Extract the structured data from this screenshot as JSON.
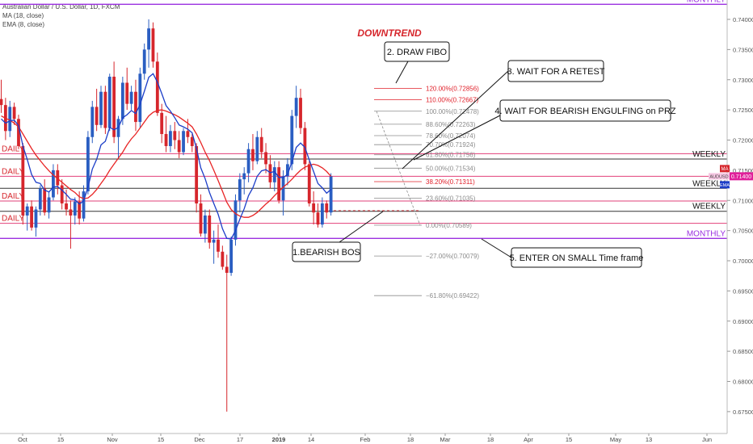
{
  "legend": {
    "title": "Australian Dollar / U.S. Dollar, 1D, FXCM",
    "ma": "MA (18, close)",
    "ema": "EMA (8, close)"
  },
  "colors": {
    "bull": "#2a5ec2",
    "bear": "#d6262c",
    "ma_line": "#e82424",
    "ema_line": "#1c3ec8",
    "level_red": "#e2407a",
    "level_dark": "#333333",
    "monthly": "#9b30e0",
    "fib_red": "#e0202a",
    "fib_grey": "#8c8c8c",
    "badge_ma": "#d6262c",
    "badge_price": "#e0209a",
    "badge_ema": "#1c3ec8"
  },
  "chart_data": {
    "type": "candlestick",
    "symbol": "AUDUSD",
    "timeframe": "1D",
    "y_range": [
      0.674,
      0.7425
    ],
    "y_ticks": [
      "0.74000",
      "0.73500",
      "0.73000",
      "0.72500",
      "0.72000",
      "0.71500",
      "0.71000",
      "0.70500",
      "0.70000",
      "0.69500",
      "0.69000",
      "0.68500",
      "0.68000",
      "0.67500"
    ],
    "x_labels": [
      "Oct",
      "15",
      "Nov",
      "15",
      "Dec",
      "17",
      "2019",
      "14",
      "Feb",
      "18",
      "Mar",
      "18",
      "Apr",
      "15",
      "May",
      "13",
      "Jun"
    ],
    "indicators": [
      "MA (18, close)",
      "EMA (8, close)"
    ],
    "badges": {
      "ma": "MA",
      "price": "0.71400",
      "ema": "EMA",
      "symbol": "AUDUSD"
    },
    "candles": [
      [
        0.7268,
        0.73,
        0.7245,
        0.7258
      ],
      [
        0.7258,
        0.727,
        0.72,
        0.7215
      ],
      [
        0.7215,
        0.7265,
        0.7205,
        0.7255
      ],
      [
        0.7255,
        0.7262,
        0.7225,
        0.7235
      ],
      [
        0.7235,
        0.7242,
        0.7185,
        0.719
      ],
      [
        0.719,
        0.7195,
        0.706,
        0.7075
      ],
      [
        0.7075,
        0.7095,
        0.705,
        0.709
      ],
      [
        0.709,
        0.71,
        0.705,
        0.7055
      ],
      [
        0.7055,
        0.709,
        0.704,
        0.7085
      ],
      [
        0.7085,
        0.7125,
        0.7075,
        0.712
      ],
      [
        0.712,
        0.7135,
        0.7075,
        0.708
      ],
      [
        0.708,
        0.7115,
        0.707,
        0.7105
      ],
      [
        0.7105,
        0.716,
        0.71,
        0.715
      ],
      [
        0.715,
        0.716,
        0.711,
        0.7125
      ],
      [
        0.7125,
        0.7135,
        0.7085,
        0.7095
      ],
      [
        0.7095,
        0.7118,
        0.7075,
        0.7085
      ],
      [
        0.7085,
        0.71,
        0.702,
        0.7075
      ],
      [
        0.7075,
        0.7105,
        0.706,
        0.7098
      ],
      [
        0.7098,
        0.7115,
        0.706,
        0.707
      ],
      [
        0.707,
        0.7125,
        0.7065,
        0.7115
      ],
      [
        0.7115,
        0.7215,
        0.711,
        0.7205
      ],
      [
        0.7205,
        0.7265,
        0.7195,
        0.7255
      ],
      [
        0.7255,
        0.7285,
        0.7215,
        0.7225
      ],
      [
        0.7225,
        0.729,
        0.722,
        0.728
      ],
      [
        0.728,
        0.729,
        0.721,
        0.722
      ],
      [
        0.722,
        0.731,
        0.7215,
        0.7305
      ],
      [
        0.7305,
        0.733,
        0.7195,
        0.7205
      ],
      [
        0.7205,
        0.724,
        0.717,
        0.7235
      ],
      [
        0.7235,
        0.7305,
        0.7225,
        0.7295
      ],
      [
        0.7295,
        0.732,
        0.725,
        0.726
      ],
      [
        0.726,
        0.729,
        0.725,
        0.728
      ],
      [
        0.728,
        0.73,
        0.7215,
        0.723
      ],
      [
        0.723,
        0.732,
        0.722,
        0.731
      ],
      [
        0.731,
        0.736,
        0.73,
        0.735
      ],
      [
        0.735,
        0.74,
        0.732,
        0.7385
      ],
      [
        0.7385,
        0.7395,
        0.732,
        0.733
      ],
      [
        0.733,
        0.7345,
        0.724,
        0.7245
      ],
      [
        0.7245,
        0.726,
        0.7195,
        0.721
      ],
      [
        0.721,
        0.724,
        0.718,
        0.719
      ],
      [
        0.719,
        0.7225,
        0.718,
        0.7215
      ],
      [
        0.7215,
        0.723,
        0.7185,
        0.72
      ],
      [
        0.72,
        0.7215,
        0.717,
        0.718
      ],
      [
        0.718,
        0.722,
        0.7175,
        0.7215
      ],
      [
        0.7215,
        0.7235,
        0.7195,
        0.7205
      ],
      [
        0.7205,
        0.721,
        0.718,
        0.719
      ],
      [
        0.719,
        0.7195,
        0.708,
        0.7095
      ],
      [
        0.7095,
        0.711,
        0.704,
        0.7045
      ],
      [
        0.7045,
        0.7085,
        0.703,
        0.7075
      ],
      [
        0.7075,
        0.7085,
        0.702,
        0.703
      ],
      [
        0.703,
        0.705,
        0.6995,
        0.7035
      ],
      [
        0.7035,
        0.706,
        0.7005,
        0.7015
      ],
      [
        0.7015,
        0.7025,
        0.6985,
        0.699
      ],
      [
        0.699,
        0.701,
        0.675,
        0.698
      ],
      [
        0.698,
        0.704,
        0.6975,
        0.7035
      ],
      [
        0.7035,
        0.711,
        0.7025,
        0.71
      ],
      [
        0.71,
        0.7145,
        0.708,
        0.7135
      ],
      [
        0.7135,
        0.7155,
        0.711,
        0.7145
      ],
      [
        0.7145,
        0.7195,
        0.713,
        0.7185
      ],
      [
        0.7185,
        0.721,
        0.715,
        0.7165
      ],
      [
        0.7165,
        0.7215,
        0.716,
        0.7205
      ],
      [
        0.7205,
        0.722,
        0.717,
        0.718
      ],
      [
        0.718,
        0.7195,
        0.7145,
        0.716
      ],
      [
        0.716,
        0.7175,
        0.712,
        0.713
      ],
      [
        0.713,
        0.7165,
        0.7115,
        0.7155
      ],
      [
        0.7155,
        0.7165,
        0.7095,
        0.71
      ],
      [
        0.71,
        0.715,
        0.7075,
        0.714
      ],
      [
        0.714,
        0.717,
        0.7125,
        0.716
      ],
      [
        0.716,
        0.725,
        0.715,
        0.724
      ],
      [
        0.724,
        0.729,
        0.722,
        0.727
      ],
      [
        0.727,
        0.7285,
        0.721,
        0.722
      ],
      [
        0.722,
        0.723,
        0.715,
        0.716
      ],
      [
        0.716,
        0.7165,
        0.709,
        0.7095
      ],
      [
        0.7095,
        0.7115,
        0.706,
        0.708
      ],
      [
        0.708,
        0.7095,
        0.7055,
        0.706
      ],
      [
        0.706,
        0.7105,
        0.7055,
        0.7095
      ],
      [
        0.7095,
        0.71,
        0.707,
        0.708
      ],
      [
        0.708,
        0.7145,
        0.7075,
        0.714
      ]
    ],
    "ma_18": [
      0.724,
      0.7236,
      0.7233,
      0.7228,
      0.7222,
      0.721,
      0.7198,
      0.7186,
      0.7175,
      0.7166,
      0.7157,
      0.7149,
      0.7142,
      0.7136,
      0.713,
      0.7124,
      0.7118,
      0.7113,
      0.7106,
      0.7103,
      0.7104,
      0.711,
      0.7118,
      0.7128,
      0.7138,
      0.715,
      0.716,
      0.717,
      0.718,
      0.7192,
      0.7202,
      0.721,
      0.722,
      0.723,
      0.724,
      0.7246,
      0.7249,
      0.725,
      0.7248,
      0.7245,
      0.7242,
      0.7238,
      0.7233,
      0.7228,
      0.7222,
      0.721,
      0.7196,
      0.718,
      0.7166,
      0.715,
      0.7133,
      0.7115,
      0.7097,
      0.7085,
      0.7078,
      0.7074,
      0.7072,
      0.7072,
      0.7075,
      0.708,
      0.7087,
      0.7094,
      0.71,
      0.7108,
      0.7115,
      0.7122,
      0.7128,
      0.7135,
      0.7143,
      0.715,
      0.7155,
      0.7158,
      0.716,
      0.7158,
      0.7154,
      0.7148,
      0.714
    ],
    "ema_8": [
      0.7235,
      0.7228,
      0.7232,
      0.7233,
      0.7224,
      0.719,
      0.7168,
      0.7143,
      0.713,
      0.7128,
      0.7117,
      0.7114,
      0.7122,
      0.7123,
      0.7117,
      0.711,
      0.7102,
      0.7101,
      0.7094,
      0.7099,
      0.7122,
      0.7152,
      0.7168,
      0.7192,
      0.7198,
      0.7221,
      0.7217,
      0.7221,
      0.7237,
      0.7242,
      0.7249,
      0.7244,
      0.7259,
      0.7281,
      0.7304,
      0.731,
      0.7296,
      0.7277,
      0.7257,
      0.7248,
      0.7237,
      0.7225,
      0.7222,
      0.7218,
      0.7212,
      0.7186,
      0.7154,
      0.7136,
      0.7113,
      0.7095,
      0.7077,
      0.7053,
      0.7037,
      0.7036,
      0.705,
      0.7069,
      0.7086,
      0.7108,
      0.7121,
      0.714,
      0.7149,
      0.7151,
      0.7146,
      0.7148,
      0.7138,
      0.7138,
      0.7143,
      0.7164,
      0.7188,
      0.7195,
      0.7188,
      0.7167,
      0.7148,
      0.7128,
      0.7121,
      0.7112,
      0.7118
    ],
    "horizontal_levels": [
      {
        "price": 0.71775,
        "label": "DAILY",
        "side": "left",
        "style": "red"
      },
      {
        "price": 0.714,
        "label": "DAILY",
        "side": "left",
        "style": "red"
      },
      {
        "price": 0.7099,
        "label": "DAILY",
        "side": "left",
        "style": "red"
      },
      {
        "price": 0.7062,
        "label": "DAILY",
        "side": "left",
        "style": "red"
      },
      {
        "price": 0.71685,
        "label": "WEEKLY",
        "side": "right",
        "style": "dark"
      },
      {
        "price": 0.712,
        "label": "WEEKLY",
        "side": "right",
        "style": "dark"
      },
      {
        "price": 0.7082,
        "label": "WEEKLY",
        "side": "right",
        "style": "dark"
      },
      {
        "price": 0.7425,
        "label": "MONTHLY",
        "side": "right",
        "style": "monthly"
      },
      {
        "price": 0.7037,
        "label": "MONTHLY",
        "side": "right",
        "style": "monthly"
      }
    ],
    "fibonacci": [
      {
        "label": "120.00%(0.72856)",
        "price": 0.72856,
        "color": "red"
      },
      {
        "label": "110.00%(0.72667)",
        "price": 0.72667,
        "color": "red"
      },
      {
        "label": "100.00%(0.72478)",
        "price": 0.72478,
        "color": "grey"
      },
      {
        "label": "88.60%(0.72263)",
        "price": 0.72263,
        "color": "grey"
      },
      {
        "label": "78.60%(0.72074)",
        "price": 0.72074,
        "color": "grey"
      },
      {
        "label": "70.70%(0.71924)",
        "price": 0.71924,
        "color": "grey"
      },
      {
        "label": "61.80%(0.71756)",
        "price": 0.71756,
        "color": "grey"
      },
      {
        "label": "50.00%(0.71534)",
        "price": 0.71534,
        "color": "grey"
      },
      {
        "label": "38.20%(0.71311)",
        "price": 0.71311,
        "color": "red"
      },
      {
        "label": "23.60%(0.71035)",
        "price": 0.71035,
        "color": "grey"
      },
      {
        "label": "0.00%(0.70589)",
        "price": 0.70589,
        "color": "grey"
      },
      {
        "label": "−27.00%(0.70079)",
        "price": 0.70079,
        "color": "grey"
      },
      {
        "label": "−61.80%(0.69422)",
        "price": 0.69422,
        "color": "grey"
      }
    ],
    "annotations": [
      {
        "text": "DOWNTREND",
        "style": "title"
      },
      {
        "text": "2. DRAW FIBO",
        "style": "callout"
      },
      {
        "text": "3. WAIT FOR A RETEST",
        "style": "callout"
      },
      {
        "text": "4. WAIT FOR BEARISH ENGULFING on PRZ",
        "style": "callout"
      },
      {
        "text": "1.BEARISH BOS",
        "style": "callout"
      },
      {
        "text": "5. ENTER ON SMALL Time frame",
        "style": "callout"
      }
    ]
  }
}
